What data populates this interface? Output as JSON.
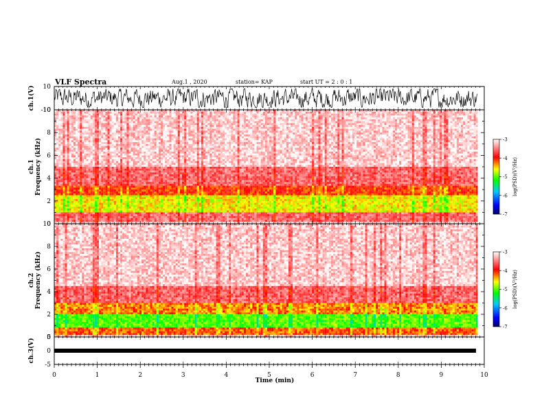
{
  "header": {
    "title": "VLF Spectra",
    "date": "Aug.1 , 2020",
    "station": "station= KAP",
    "start": "start UT = 2 : 0 : 1"
  },
  "colorbar": {
    "label": "log(PSD)(V²/Hz)",
    "ticks": [
      "-3",
      "-4",
      "-5",
      "-6",
      "-7"
    ],
    "range": [
      -7,
      -3
    ],
    "colors": [
      "#000066",
      "#0000ff",
      "#00c8ff",
      "#00ff00",
      "#ffff00",
      "#ff0000",
      "#ffffff"
    ]
  },
  "chart_data": [
    {
      "type": "line",
      "name": "ch1-waveform",
      "ylabel": "ch.1(V)",
      "ylim": [
        -10,
        10
      ],
      "yticks": [
        "10",
        "-10"
      ],
      "x_range_min": [
        0,
        10
      ],
      "data_end_min": 9.85,
      "signal": "noise waveform spanning approximately -8 to 8 V"
    },
    {
      "type": "heatmap",
      "name": "ch1-spectrogram",
      "ylabel": "ch.1\nFrequency (kHz)",
      "ylim": [
        0,
        10
      ],
      "yticks": [
        "0",
        "2",
        "4",
        "6",
        "8",
        "10"
      ],
      "x_range_min": [
        0,
        10
      ],
      "data_end_min": 9.85,
      "profile_khz": [
        {
          "f": [
            0.2,
            1.0
          ],
          "logpsd": -3.6
        },
        {
          "f": [
            1.0,
            2.5
          ],
          "logpsd": -4.6
        },
        {
          "f": [
            2.5,
            3.4
          ],
          "logpsd": -4.1
        },
        {
          "f": [
            3.4,
            5.0
          ],
          "logpsd": -3.6
        },
        {
          "f": [
            5.0,
            10.0
          ],
          "logpsd": -3.2
        }
      ]
    },
    {
      "type": "heatmap",
      "name": "ch2-spectrogram",
      "ylabel": "ch.2\nFrequency (kHz)",
      "ylim": [
        0,
        10
      ],
      "yticks": [
        "0",
        "2",
        "4",
        "6",
        "8",
        "10"
      ],
      "x_range_min": [
        0,
        10
      ],
      "data_end_min": 9.85,
      "profile_khz": [
        {
          "f": [
            0.2,
            0.8
          ],
          "logpsd": -4.2
        },
        {
          "f": [
            0.8,
            2.0
          ],
          "logpsd": -5.0
        },
        {
          "f": [
            2.0,
            3.0
          ],
          "logpsd": -4.3
        },
        {
          "f": [
            3.0,
            4.5
          ],
          "logpsd": -3.6
        },
        {
          "f": [
            4.5,
            10.0
          ],
          "logpsd": -3.2
        }
      ]
    },
    {
      "type": "line",
      "name": "ch3-waveform",
      "ylabel": "ch.3(V)",
      "ylim": [
        -5,
        5
      ],
      "yticks": [
        "5",
        "0",
        "-5"
      ],
      "x_range_min": [
        0,
        10
      ],
      "data_end_min": 9.85,
      "signal": "constant level near -1 V"
    }
  ],
  "xaxis": {
    "label": "Time (min)",
    "ticks": [
      "0",
      "1",
      "2",
      "3",
      "4",
      "5",
      "6",
      "7",
      "8",
      "9",
      "10"
    ]
  }
}
